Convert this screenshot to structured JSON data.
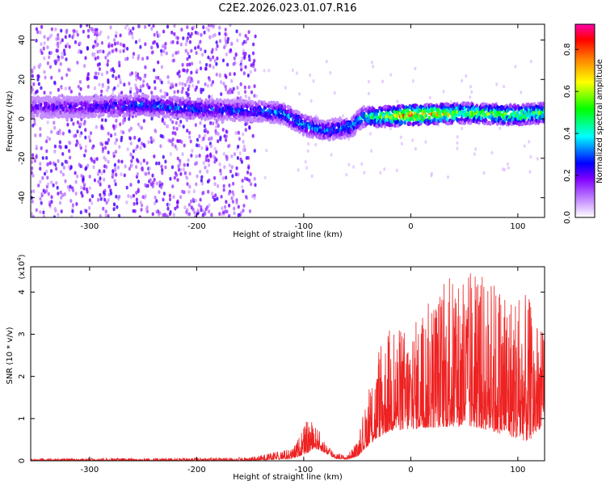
{
  "title": "C2E2.2026.023.01.07.R16",
  "chart_data": [
    {
      "type": "heatmap",
      "title": "C2E2.2026.023.01.07.R16",
      "xlabel": "Height of straight line (km)",
      "ylabel": "Frequency (Hz)",
      "xlim": [
        -355,
        125
      ],
      "ylim": [
        -50,
        48
      ],
      "xticks": [
        -300,
        -200,
        -100,
        0,
        100
      ],
      "yticks": [
        -40,
        -20,
        0,
        20,
        40
      ],
      "colorbar": {
        "label": "Normalized spectral amplitude",
        "range": [
          0.0,
          0.92
        ],
        "ticks": [
          0.0,
          0.2,
          0.4,
          0.6,
          0.8
        ],
        "colormap": [
          "#ffffff",
          "#e6ccff",
          "#b266ff",
          "#7f00ff",
          "#0000ff",
          "#00ffff",
          "#00ff00",
          "#ffff00",
          "#ff8000",
          "#ff0000",
          "#ff00aa"
        ]
      },
      "ridge": {
        "x": [
          -355,
          -300,
          -250,
          -200,
          -150,
          -120,
          -100,
          -80,
          -70,
          -55,
          -45,
          -30,
          0,
          50,
          100,
          125
        ],
        "center": [
          6,
          6,
          7,
          5,
          4,
          3,
          -3,
          -6,
          -5,
          -4,
          1,
          1,
          2,
          3,
          2,
          3
        ],
        "peak": [
          0.22,
          0.26,
          0.35,
          0.32,
          0.32,
          0.4,
          0.42,
          0.35,
          0.36,
          0.4,
          0.45,
          0.6,
          0.9,
          0.6,
          0.65,
          0.6
        ]
      },
      "noise_region_x": [
        -355,
        -145
      ]
    },
    {
      "type": "line",
      "title": "",
      "xlabel": "Height of straight line (km)",
      "ylabel": "SNR (10 * v/v)",
      "y_scale_label": "(x10",
      "y_scale_exp": "4",
      "xlim": [
        -355,
        125
      ],
      "ylim": [
        0,
        4.6
      ],
      "xticks": [
        -300,
        -200,
        -100,
        0,
        100
      ],
      "yticks": [
        0,
        1,
        2,
        3,
        4
      ],
      "color": "#ee2222",
      "envelope": {
        "x": [
          -355,
          -150,
          -110,
          -100,
          -95,
          -90,
          -85,
          -80,
          -70,
          -60,
          -50,
          -40,
          -30,
          -20,
          0,
          30,
          60,
          90,
          110,
          125
        ],
        "base": [
          0.0,
          0.0,
          0.05,
          0.15,
          0.2,
          0.3,
          0.25,
          0.18,
          0.05,
          0.03,
          0.1,
          0.35,
          0.55,
          0.7,
          0.75,
          0.8,
          0.8,
          0.6,
          0.45,
          0.9
        ],
        "max": [
          0.05,
          0.08,
          0.3,
          0.8,
          1.05,
          0.85,
          0.7,
          0.45,
          0.2,
          0.12,
          0.45,
          1.6,
          2.6,
          3.2,
          3.2,
          4.3,
          4.5,
          4.2,
          3.9,
          3.0
        ]
      }
    }
  ]
}
